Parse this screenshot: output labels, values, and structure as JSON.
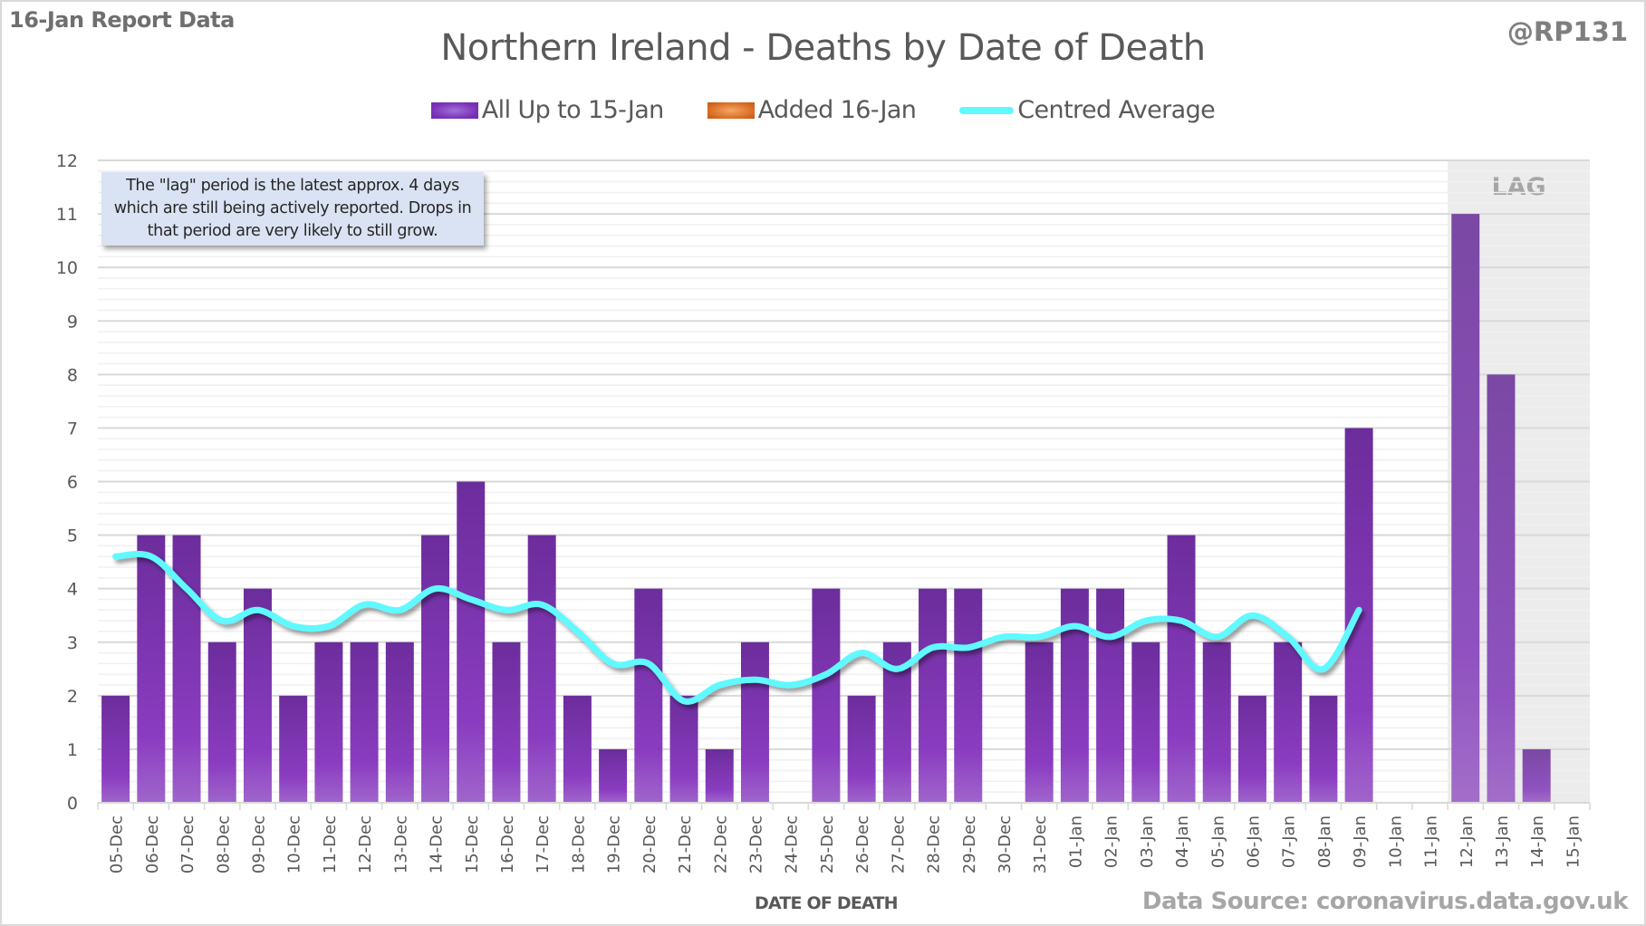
{
  "header": {
    "report_label": "16-Jan Report Data",
    "handle": "@RP131",
    "title": "Northern Ireland - Deaths by Date of Death"
  },
  "legend": [
    {
      "label": "All Up to 15-Jan",
      "type": "bar",
      "color": "#7b34b8"
    },
    {
      "label": "Added 16-Jan",
      "type": "bar",
      "color": "#d86a20"
    },
    {
      "label": "Centred Average",
      "type": "line",
      "color": "#5ff9ff"
    }
  ],
  "note": "The \"lag\" period is the latest approx. 4 days which are still being actively reported. Drops in that period are very likely to still grow.",
  "lag_label": "LAG",
  "footer": {
    "xlabel": "DATE OF DEATH",
    "source": "Data Source: coronavirus.data.gov.uk"
  },
  "chart_data": {
    "type": "bar",
    "title": "Northern Ireland - Deaths by Date of Death",
    "xlabel": "DATE OF DEATH",
    "ylabel": "",
    "ylim": [
      0,
      12
    ],
    "yticks": [
      0,
      1,
      2,
      3,
      4,
      5,
      6,
      7,
      8,
      9,
      10,
      11,
      12
    ],
    "grid": true,
    "legend_position": "top-center",
    "lag_start_category": "12-Jan",
    "categories": [
      "05-Dec",
      "06-Dec",
      "07-Dec",
      "08-Dec",
      "09-Dec",
      "10-Dec",
      "11-Dec",
      "12-Dec",
      "13-Dec",
      "14-Dec",
      "15-Dec",
      "16-Dec",
      "17-Dec",
      "18-Dec",
      "19-Dec",
      "20-Dec",
      "21-Dec",
      "22-Dec",
      "23-Dec",
      "24-Dec",
      "25-Dec",
      "26-Dec",
      "27-Dec",
      "28-Dec",
      "29-Dec",
      "30-Dec",
      "31-Dec",
      "01-Jan",
      "02-Jan",
      "03-Jan",
      "04-Jan",
      "05-Jan",
      "06-Jan",
      "07-Jan",
      "08-Jan",
      "09-Jan",
      "10-Jan",
      "11-Jan",
      "12-Jan",
      "13-Jan",
      "14-Jan",
      "15-Jan"
    ],
    "series": [
      {
        "name": "All Up to 15-Jan",
        "type": "bar",
        "values": [
          2,
          5,
          5,
          3,
          4,
          2,
          3,
          3,
          3,
          5,
          6,
          3,
          5,
          2,
          1,
          4,
          2,
          1,
          3,
          0,
          4,
          2,
          3,
          4,
          4,
          0,
          3,
          4,
          4,
          3,
          5,
          3,
          2,
          3,
          2,
          7,
          0,
          0,
          11,
          8,
          1,
          0
        ]
      },
      {
        "name": "Added 16-Jan",
        "type": "bar",
        "values": [
          0,
          0,
          0,
          0,
          0,
          0,
          0,
          0,
          0,
          0,
          0,
          0,
          0,
          0,
          0,
          0,
          0,
          0,
          0,
          0,
          0,
          0,
          0,
          0,
          0,
          0,
          0,
          0,
          0,
          0,
          0,
          0,
          0,
          0,
          0,
          0,
          0,
          0,
          0,
          0,
          0,
          0
        ]
      },
      {
        "name": "Centred Average",
        "type": "line",
        "values": [
          4.6,
          4.6,
          4.0,
          3.4,
          3.6,
          3.3,
          3.3,
          3.7,
          3.6,
          4.0,
          3.8,
          3.6,
          3.7,
          3.2,
          2.6,
          2.6,
          1.9,
          2.2,
          2.3,
          2.2,
          2.4,
          2.8,
          2.5,
          2.9,
          2.9,
          3.1,
          3.1,
          3.3,
          3.1,
          3.4,
          3.4,
          3.1,
          3.5,
          3.1,
          2.5,
          3.6,
          null,
          null,
          null,
          null,
          null,
          null
        ]
      }
    ]
  }
}
